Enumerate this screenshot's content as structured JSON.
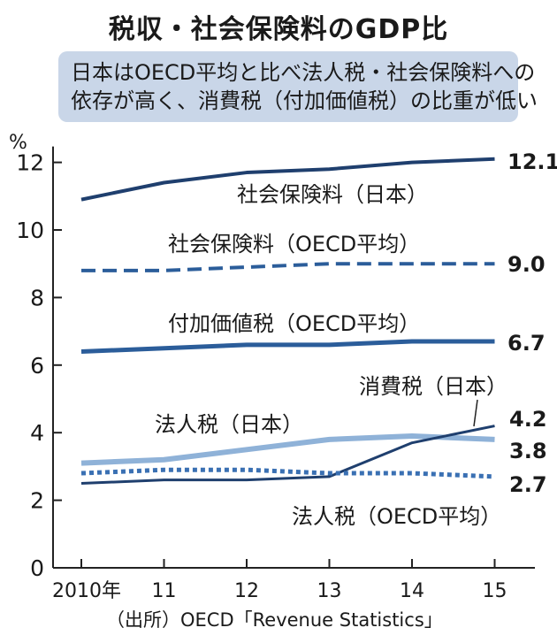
{
  "title": "税収・社会保険料のGDP比",
  "subtitle": [
    "日本はOECD平均と比べ法人税・社会保険料への",
    "依存が高く、消費税（付加価値税）の比重が低い"
  ],
  "source": "（出所）OECD「Revenue Statistics」",
  "chart_data": {
    "type": "line",
    "x": [
      2010,
      2011,
      2012,
      2013,
      2014,
      2015
    ],
    "x_tick_labels": [
      "2010年",
      "11",
      "12",
      "13",
      "14",
      "15"
    ],
    "y_unit": "%",
    "ylim": [
      0,
      12
    ],
    "y_ticks": [
      0,
      2,
      4,
      6,
      8,
      10,
      12
    ],
    "grid": false,
    "series": [
      {
        "name": "社会保険料（日本）",
        "values": [
          10.9,
          11.4,
          11.7,
          11.8,
          12.0,
          12.1
        ],
        "end_label": "12.1",
        "color": "#1f3f6e",
        "dash": "solid",
        "width": 4
      },
      {
        "name": "社会保険料（OECD平均）",
        "values": [
          8.8,
          8.8,
          8.9,
          9.0,
          9.0,
          9.0
        ],
        "end_label": "9.0",
        "color": "#2b5d9a",
        "dash": "dashed",
        "width": 4
      },
      {
        "name": "付加価値税（OECD平均）",
        "values": [
          6.4,
          6.5,
          6.6,
          6.6,
          6.7,
          6.7
        ],
        "end_label": "6.7",
        "color": "#2b5d9a",
        "dash": "solid",
        "width": 5
      },
      {
        "name": "法人税（日本）",
        "values": [
          3.1,
          3.2,
          3.5,
          3.8,
          3.9,
          3.8
        ],
        "end_label": "3.8",
        "color": "#8fb2d8",
        "dash": "solid",
        "width": 6
      },
      {
        "name": "消費税（日本）",
        "values": [
          2.5,
          2.6,
          2.6,
          2.7,
          3.7,
          4.2
        ],
        "end_label": "4.2",
        "color": "#1f3f6e",
        "dash": "solid",
        "width": 3
      },
      {
        "name": "法人税（OECD平均）",
        "values": [
          2.8,
          2.9,
          2.9,
          2.8,
          2.8,
          2.7
        ],
        "end_label": "2.7",
        "color": "#3a70b3",
        "dash": "dotted",
        "width": 5
      }
    ]
  }
}
